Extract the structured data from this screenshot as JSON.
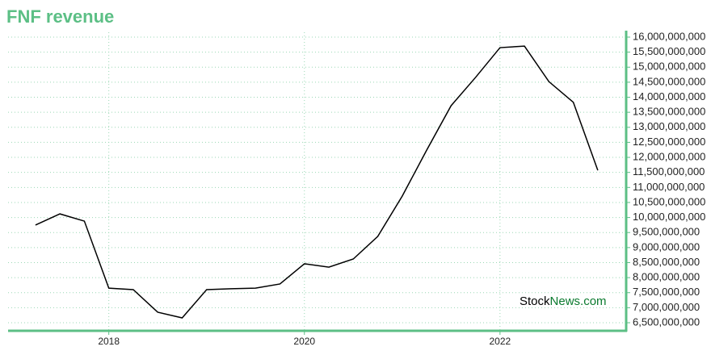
{
  "chart_data": {
    "type": "line",
    "title": "FNF revenue",
    "x": [
      2017.25,
      2017.5,
      2017.75,
      2018,
      2018.25,
      2018.5,
      2018.75,
      2019,
      2019.25,
      2019.5,
      2019.75,
      2020,
      2020.25,
      2020.5,
      2020.75,
      2021,
      2021.25,
      2021.5,
      2021.75,
      2022,
      2022.25,
      2022.5,
      2022.75,
      2023
    ],
    "series": [
      {
        "name": "FNF revenue",
        "color": "#000000",
        "values": [
          9750000000,
          10120000000,
          9880000000,
          7650000000,
          7600000000,
          6850000000,
          6660000000,
          7600000000,
          7630000000,
          7650000000,
          7790000000,
          8460000000,
          8350000000,
          8620000000,
          9370000000,
          10710000000,
          12240000000,
          13720000000,
          14660000000,
          15650000000,
          15700000000,
          14520000000,
          13830000000,
          11570000000
        ]
      }
    ],
    "xlim": [
      2016.97,
      2023.29
    ],
    "xticks": [
      2018,
      2020,
      2022
    ],
    "ylim": [
      6500000000,
      16000000000
    ],
    "yticks": [
      {
        "value": 6500000000,
        "label": "6,500,000,000"
      },
      {
        "value": 7000000000,
        "label": "7,000,000,000"
      },
      {
        "value": 7500000000,
        "label": "7,500,000,000"
      },
      {
        "value": 8000000000,
        "label": "8,000,000,000"
      },
      {
        "value": 8500000000,
        "label": "8,500,000,000"
      },
      {
        "value": 9000000000,
        "label": "9,000,000,000"
      },
      {
        "value": 9500000000,
        "label": "9,500,000,000"
      },
      {
        "value": 10000000000,
        "label": "10,000,000,000"
      },
      {
        "value": 10500000000,
        "label": "10,500,000,000"
      },
      {
        "value": 11000000000,
        "label": "11,000,000,000"
      },
      {
        "value": 11500000000,
        "label": "11,500,000,000"
      },
      {
        "value": 12000000000,
        "label": "12,000,000,000"
      },
      {
        "value": 12500000000,
        "label": "12,500,000,000"
      },
      {
        "value": 13000000000,
        "label": "13,000,000,000"
      },
      {
        "value": 13500000000,
        "label": "13,500,000,000"
      },
      {
        "value": 14000000000,
        "label": "14,000,000,000"
      },
      {
        "value": 14500000000,
        "label": "14,500,000,000"
      },
      {
        "value": 15000000000,
        "label": "15,000,000,000"
      },
      {
        "value": 15500000000,
        "label": "15,500,000,000"
      },
      {
        "value": 16000000000,
        "label": "16,000,000,000"
      }
    ],
    "grid": true,
    "axis_color": "#5cbf85",
    "grid_color": "#9ad7b4",
    "watermark": [
      "Stock",
      "News.com"
    ]
  }
}
